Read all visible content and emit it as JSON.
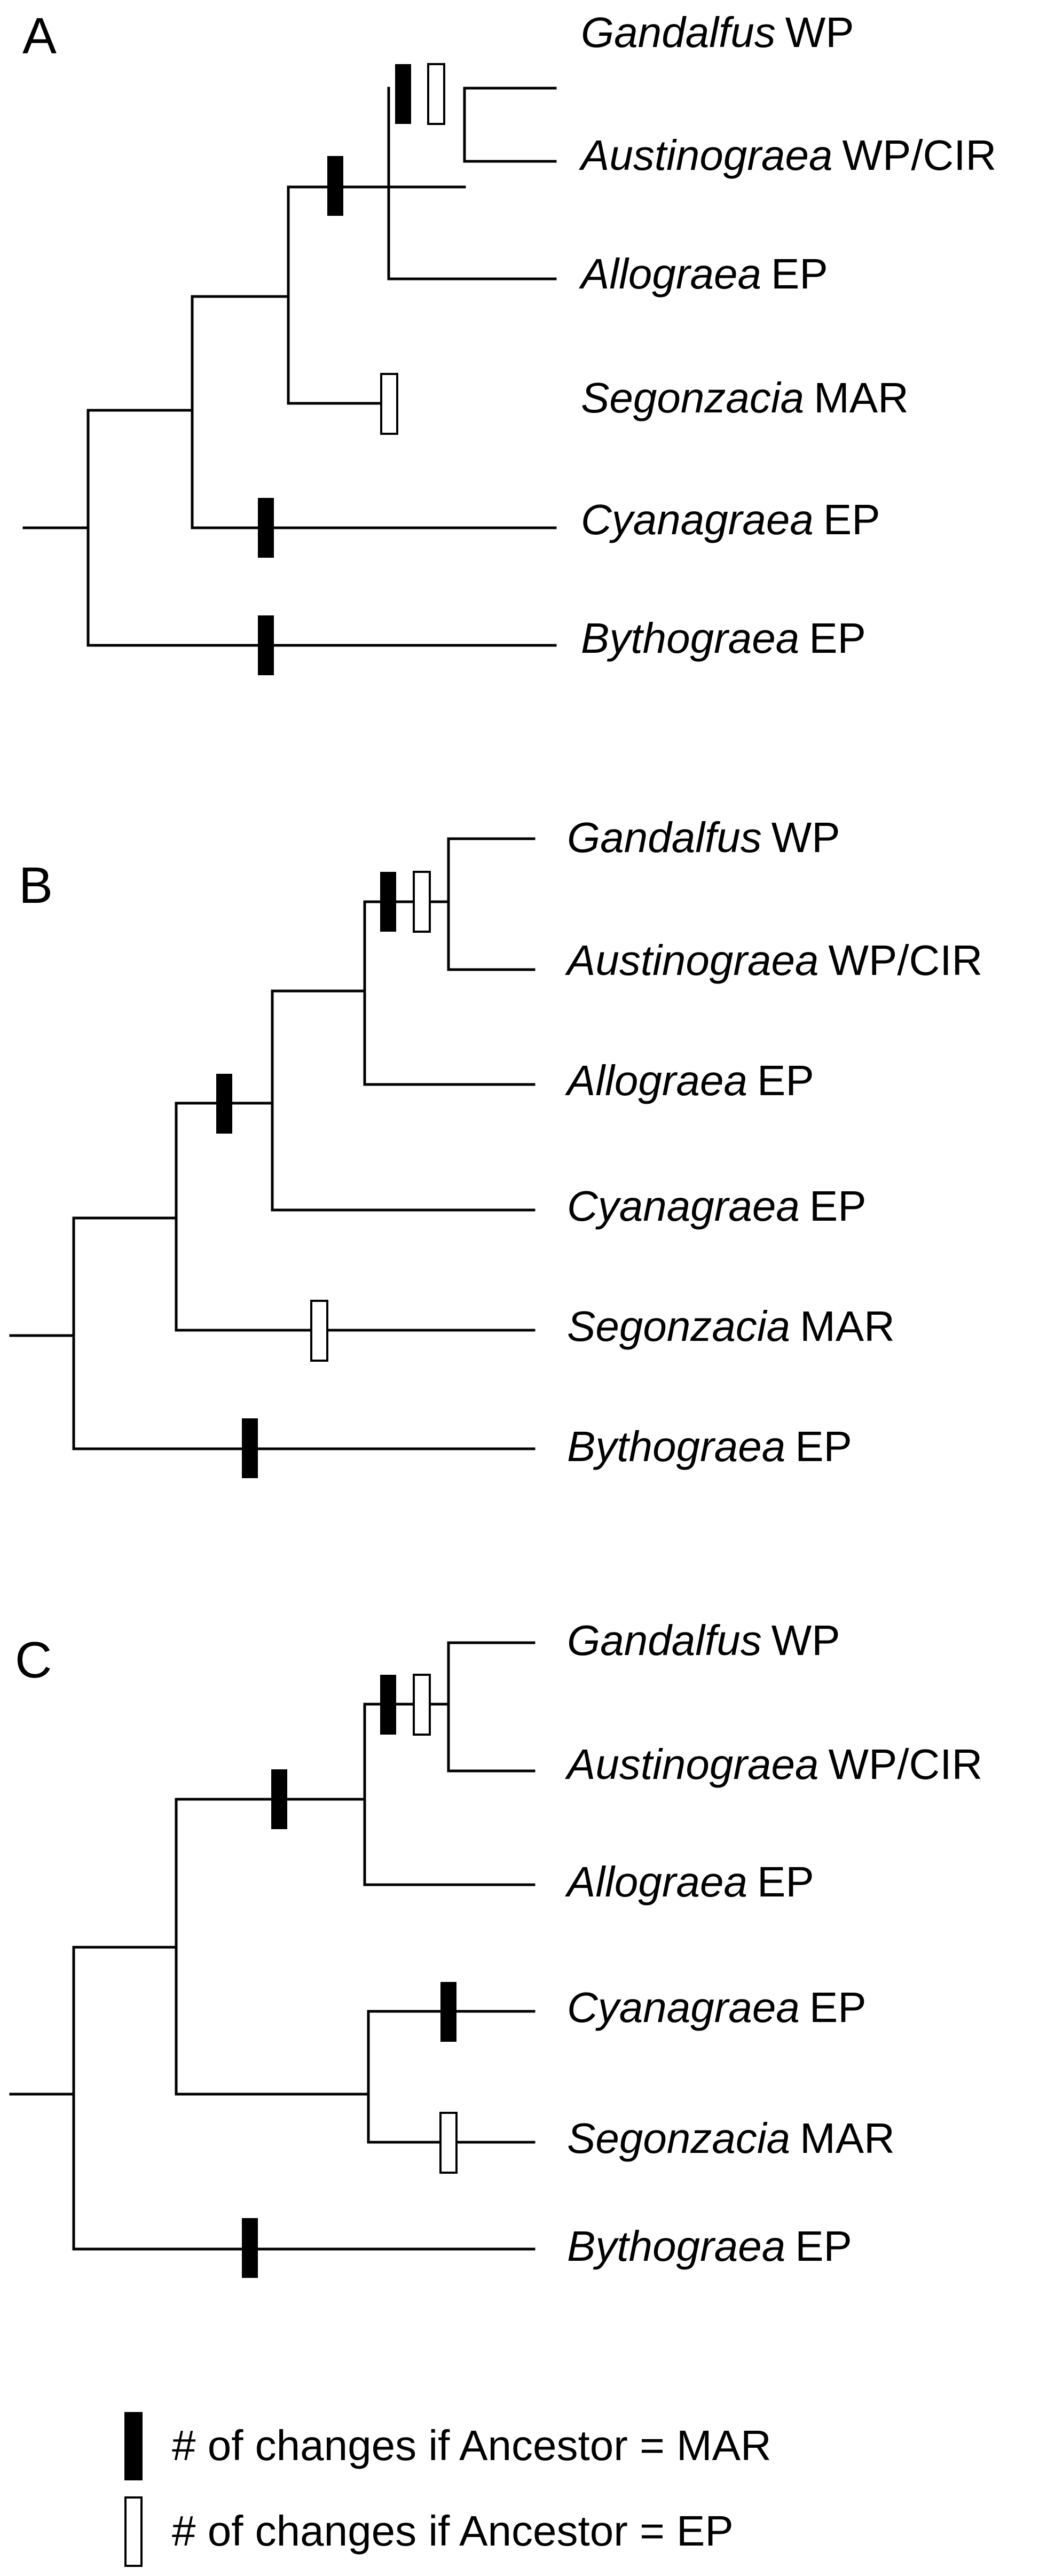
{
  "colors": {
    "line": "#000000",
    "mar_marker_fill": "#000000",
    "ep_marker_fill": "#ffffff",
    "background": "#ffffff"
  },
  "panels": [
    {
      "label": "A",
      "taxa": [
        {
          "genus": "Gandalfus",
          "region": "WP"
        },
        {
          "genus": "Austinograea",
          "region": "WP/CIR"
        },
        {
          "genus": "Allograea",
          "region": "EP"
        },
        {
          "genus": "Segonzacia",
          "region": "MAR"
        },
        {
          "genus": "Cyanagraea",
          "region": "EP"
        },
        {
          "genus": "Bythograea",
          "region": "EP"
        }
      ]
    },
    {
      "label": "B",
      "taxa": [
        {
          "genus": "Gandalfus",
          "region": "WP"
        },
        {
          "genus": "Austinograea",
          "region": "WP/CIR"
        },
        {
          "genus": "Allograea",
          "region": "EP"
        },
        {
          "genus": "Cyanagraea",
          "region": "EP"
        },
        {
          "genus": "Segonzacia",
          "region": "MAR"
        },
        {
          "genus": "Bythograea",
          "region": "EP"
        }
      ]
    },
    {
      "label": "C",
      "taxa": [
        {
          "genus": "Gandalfus",
          "region": "WP"
        },
        {
          "genus": "Austinograea",
          "region": "WP/CIR"
        },
        {
          "genus": "Allograea",
          "region": "EP"
        },
        {
          "genus": "Cyanagraea",
          "region": "EP"
        },
        {
          "genus": "Segonzacia",
          "region": "MAR"
        },
        {
          "genus": "Bythograea",
          "region": "EP"
        }
      ]
    }
  ],
  "legend": {
    "mar_label": "# of changes if Ancestor = MAR",
    "ep_label": "# of changes if Ancestor = EP"
  }
}
